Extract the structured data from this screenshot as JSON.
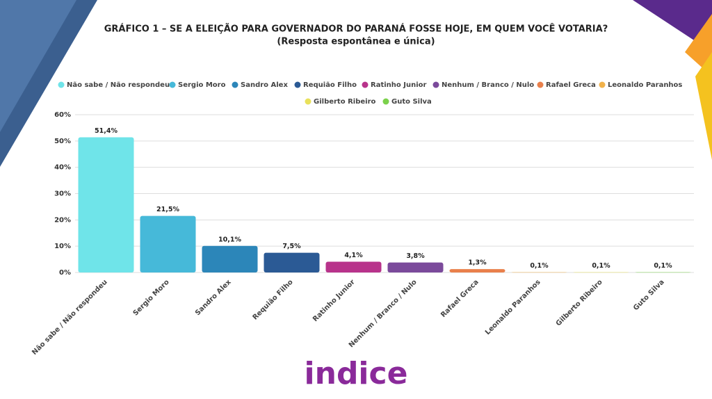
{
  "chart_data": {
    "type": "bar",
    "title": "GRÁFICO 1 – SE A ELEIÇÃO PARA GOVERNADOR DO PARANÁ FOSSE HOJE, EM QUEM VOCÊ VOTARIA?",
    "subtitle": "(Resposta espontânea e única)",
    "categories": [
      "Não sabe / Não respondeu",
      "Sergio Moro",
      "Sandro Alex",
      "Requião Filho",
      "Ratinho Junior",
      "Nenhum / Branco / Nulo",
      "Rafael Greca",
      "Leonaldo Paranhos",
      "Gilberto Ribeiro",
      "Guto Silva"
    ],
    "values": [
      51.4,
      21.5,
      10.1,
      7.5,
      4.1,
      3.8,
      1.3,
      0.1,
      0.1,
      0.1
    ],
    "value_labels": [
      "51,4%",
      "21,5%",
      "10,1%",
      "7,5%",
      "4,1%",
      "3,8%",
      "1,3%",
      "0,1%",
      "0,1%",
      "0,1%"
    ],
    "colors": [
      "#6fe4e9",
      "#46b9d9",
      "#2c86b9",
      "#2b5a95",
      "#b8338b",
      "#7b4a9b",
      "#e9804b",
      "#f1b24b",
      "#e9e15b",
      "#7bd14b"
    ],
    "ylim": [
      0,
      60
    ],
    "yticks": [
      {
        "value": 0,
        "label": "0%"
      },
      {
        "value": 10,
        "label": "10%"
      },
      {
        "value": 20,
        "label": "20%"
      },
      {
        "value": 30,
        "label": "30%"
      },
      {
        "value": 40,
        "label": "40%"
      },
      {
        "value": 50,
        "label": "50%"
      },
      {
        "value": 60,
        "label": "60%"
      }
    ],
    "grid": true,
    "logo": "indice"
  }
}
